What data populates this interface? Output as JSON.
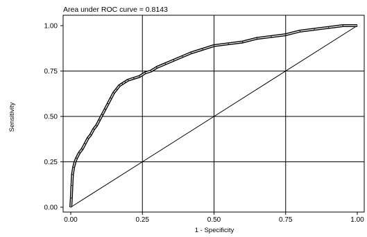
{
  "chart_data": {
    "type": "line",
    "title": "Area under ROC curve = 0.8143",
    "xlabel": "1 - Specificity",
    "ylabel": "Sensitivity",
    "xlim": [
      0,
      1
    ],
    "ylim": [
      0,
      1
    ],
    "x_ticks": [
      "0.00",
      "0.25",
      "0.50",
      "0.75",
      "1.00"
    ],
    "y_ticks": [
      "0.00",
      "0.25",
      "0.50",
      "0.75",
      "1.00"
    ],
    "grid": true,
    "series": [
      {
        "values": [
          [
            0.0,
            0.0
          ],
          [
            0.002,
            0.05
          ],
          [
            0.004,
            0.12
          ],
          [
            0.006,
            0.18
          ],
          [
            0.01,
            0.22
          ],
          [
            0.015,
            0.25
          ],
          [
            0.02,
            0.27
          ],
          [
            0.03,
            0.3
          ],
          [
            0.04,
            0.32
          ],
          [
            0.05,
            0.35
          ],
          [
            0.06,
            0.38
          ],
          [
            0.07,
            0.4
          ],
          [
            0.08,
            0.43
          ],
          [
            0.09,
            0.45
          ],
          [
            0.1,
            0.48
          ],
          [
            0.11,
            0.51
          ],
          [
            0.12,
            0.54
          ],
          [
            0.13,
            0.57
          ],
          [
            0.14,
            0.6
          ],
          [
            0.15,
            0.63
          ],
          [
            0.16,
            0.65
          ],
          [
            0.17,
            0.67
          ],
          [
            0.18,
            0.68
          ],
          [
            0.19,
            0.69
          ],
          [
            0.2,
            0.7
          ],
          [
            0.22,
            0.71
          ],
          [
            0.24,
            0.72
          ],
          [
            0.26,
            0.74
          ],
          [
            0.28,
            0.75
          ],
          [
            0.3,
            0.77
          ],
          [
            0.33,
            0.79
          ],
          [
            0.36,
            0.81
          ],
          [
            0.39,
            0.83
          ],
          [
            0.42,
            0.85
          ],
          [
            0.46,
            0.87
          ],
          [
            0.5,
            0.89
          ],
          [
            0.55,
            0.9
          ],
          [
            0.6,
            0.91
          ],
          [
            0.65,
            0.93
          ],
          [
            0.7,
            0.94
          ],
          [
            0.75,
            0.95
          ],
          [
            0.8,
            0.97
          ],
          [
            0.85,
            0.98
          ],
          [
            0.9,
            0.99
          ],
          [
            0.95,
            1.0
          ],
          [
            1.0,
            1.0
          ]
        ]
      },
      {
        "values": [
          [
            0,
            0
          ],
          [
            1,
            1
          ]
        ]
      }
    ]
  }
}
